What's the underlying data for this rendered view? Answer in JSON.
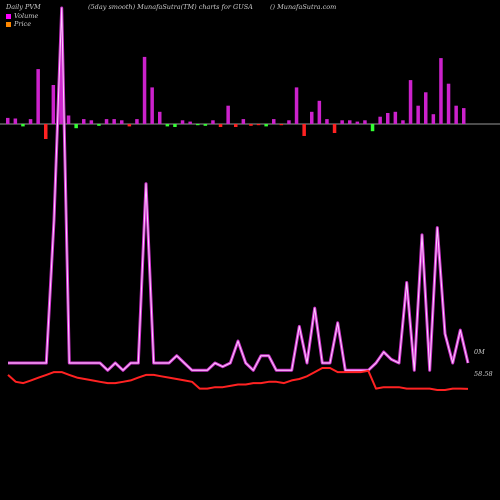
{
  "header": {
    "left": "Daily PVM",
    "middle": "(5day smooth) MunafaSutra(TM) charts for GUSA",
    "right": "() MunafaSutra.com"
  },
  "legend": {
    "volume_label": "Volume",
    "price_label": "Price",
    "volume_color": "#ff00ff",
    "price_color": "#ff8800"
  },
  "colors": {
    "up_bar": "#cc22cc",
    "down_bar": "#ff2222",
    "green_bar": "#33ff33",
    "volume_line_outer": "#cc33cc",
    "volume_line_inner": "#ffccff",
    "price_line": "#ff2222",
    "baseline": "#999999"
  },
  "chart_data": {
    "type": "line",
    "series": [
      {
        "name": "Volume",
        "end_label": "0M",
        "values": [
          3,
          3,
          3,
          3,
          3,
          3,
          42,
          100,
          3,
          3,
          3,
          3,
          3,
          1,
          3,
          1,
          3,
          3,
          52,
          3,
          3,
          3,
          5,
          3,
          1,
          1,
          1,
          3,
          2,
          3,
          9,
          3,
          1,
          5,
          5,
          1,
          1,
          1,
          13,
          3,
          18,
          3,
          3,
          14,
          1,
          1,
          1,
          1,
          3,
          6,
          4,
          3,
          25,
          1,
          38,
          1,
          40,
          11,
          3,
          12,
          3
        ]
      },
      {
        "name": "Price",
        "end_label": "58.58",
        "values": [
          59.6,
          59.1,
          59.0,
          59.2,
          59.4,
          59.6,
          59.8,
          59.8,
          59.6,
          59.4,
          59.3,
          59.2,
          59.1,
          59.0,
          59.0,
          59.1,
          59.2,
          59.4,
          59.6,
          59.6,
          59.5,
          59.4,
          59.3,
          59.2,
          59.1,
          58.6,
          58.6,
          58.7,
          58.7,
          58.8,
          58.9,
          58.9,
          59.0,
          59.0,
          59.1,
          59.1,
          59.0,
          59.2,
          59.3,
          59.5,
          59.8,
          60.1,
          60.1,
          59.8,
          59.8,
          59.8,
          59.8,
          59.9,
          58.6,
          58.7,
          58.7,
          58.7,
          58.6,
          58.6,
          58.6,
          58.6,
          58.5,
          58.5,
          58.6,
          58.6,
          58.58
        ]
      }
    ],
    "flow_bars": [
      {
        "dir": "up",
        "height": 0.05
      },
      {
        "dir": "up",
        "height": 0.045
      },
      {
        "dir": "green",
        "height": 0.04
      },
      {
        "dir": "up",
        "height": 0.04
      },
      {
        "dir": "up",
        "height": 0.45
      },
      {
        "dir": "down",
        "height": 0.25
      },
      {
        "dir": "up",
        "height": 0.32
      },
      {
        "dir": "up",
        "height": 0.53
      },
      {
        "dir": "up",
        "height": 0.07
      },
      {
        "dir": "green",
        "height": 0.07
      },
      {
        "dir": "up",
        "height": 0.04
      },
      {
        "dir": "up",
        "height": 0.03
      },
      {
        "dir": "green",
        "height": 0.03
      },
      {
        "dir": "up",
        "height": 0.04
      },
      {
        "dir": "up",
        "height": 0.04
      },
      {
        "dir": "up",
        "height": 0.03
      },
      {
        "dir": "down",
        "height": 0.04
      },
      {
        "dir": "up",
        "height": 0.04
      },
      {
        "dir": "up",
        "height": 0.55
      },
      {
        "dir": "up",
        "height": 0.3
      },
      {
        "dir": "up",
        "height": 0.1
      },
      {
        "dir": "green",
        "height": 0.04
      },
      {
        "dir": "green",
        "height": 0.05
      },
      {
        "dir": "up",
        "height": 0.03
      },
      {
        "dir": "up",
        "height": 0.02
      },
      {
        "dir": "green",
        "height": 0.02
      },
      {
        "dir": "green",
        "height": 0.03
      },
      {
        "dir": "up",
        "height": 0.03
      },
      {
        "dir": "down",
        "height": 0.05
      },
      {
        "dir": "up",
        "height": 0.15
      },
      {
        "dir": "down",
        "height": 0.05
      },
      {
        "dir": "up",
        "height": 0.04
      },
      {
        "dir": "down",
        "height": 0.03
      },
      {
        "dir": "down",
        "height": 0.02
      },
      {
        "dir": "green",
        "height": 0.04
      },
      {
        "dir": "up",
        "height": 0.04
      },
      {
        "dir": "down",
        "height": 0.02
      },
      {
        "dir": "up",
        "height": 0.03
      },
      {
        "dir": "up",
        "height": 0.3
      },
      {
        "dir": "down",
        "height": 0.2
      },
      {
        "dir": "up",
        "height": 0.1
      },
      {
        "dir": "up",
        "height": 0.19
      },
      {
        "dir": "up",
        "height": 0.04
      },
      {
        "dir": "down",
        "height": 0.15
      },
      {
        "dir": "up",
        "height": 0.03
      },
      {
        "dir": "up",
        "height": 0.03
      },
      {
        "dir": "up",
        "height": 0.02
      },
      {
        "dir": "up",
        "height": 0.03
      },
      {
        "dir": "green",
        "height": 0.12
      },
      {
        "dir": "up",
        "height": 0.06
      },
      {
        "dir": "up",
        "height": 0.09
      },
      {
        "dir": "up",
        "height": 0.1
      },
      {
        "dir": "up",
        "height": 0.03
      },
      {
        "dir": "up",
        "height": 0.36
      },
      {
        "dir": "up",
        "height": 0.15
      },
      {
        "dir": "up",
        "height": 0.26
      },
      {
        "dir": "up",
        "height": 0.08
      },
      {
        "dir": "up",
        "height": 0.54
      },
      {
        "dir": "up",
        "height": 0.33
      },
      {
        "dir": "up",
        "height": 0.15
      },
      {
        "dir": "up",
        "height": 0.13
      }
    ]
  }
}
